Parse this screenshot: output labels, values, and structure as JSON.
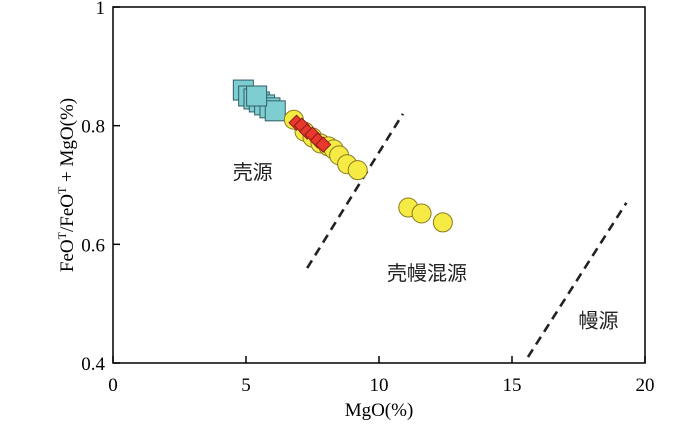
{
  "chart_data": {
    "type": "scatter",
    "xlabel": "MgO(%)",
    "ylabel_parts": [
      "FeO",
      "T",
      "/FeO",
      "T",
      " + MgO(%)"
    ],
    "xlim": [
      0,
      20
    ],
    "ylim": [
      0.4,
      1.0
    ],
    "x_ticks": [
      0,
      5,
      10,
      15,
      20
    ],
    "x_tick_labels": [
      "0",
      "5",
      "10",
      "15",
      "20"
    ],
    "y_ticks": [
      0.4,
      0.6,
      0.8,
      1.0
    ],
    "y_tick_labels": [
      "0.4",
      "0.6",
      "0.8",
      "1"
    ],
    "grid": false,
    "series": [
      {
        "marker": "square",
        "color": "#7ecdd0",
        "stroke": "#2f5f66",
        "points": [
          {
            "x": 4.9,
            "y": 0.86
          },
          {
            "x": 5.1,
            "y": 0.85
          },
          {
            "x": 5.3,
            "y": 0.845
          },
          {
            "x": 5.5,
            "y": 0.84
          },
          {
            "x": 5.7,
            "y": 0.835
          },
          {
            "x": 5.9,
            "y": 0.83
          },
          {
            "x": 6.1,
            "y": 0.825
          },
          {
            "x": 5.4,
            "y": 0.85
          }
        ]
      },
      {
        "marker": "circle",
        "color": "#f6ea45",
        "stroke": "#8a7b1d",
        "points": [
          {
            "x": 6.8,
            "y": 0.81
          },
          {
            "x": 7.2,
            "y": 0.79
          },
          {
            "x": 7.5,
            "y": 0.78
          },
          {
            "x": 7.8,
            "y": 0.77
          },
          {
            "x": 8.1,
            "y": 0.765
          },
          {
            "x": 8.3,
            "y": 0.76
          },
          {
            "x": 8.5,
            "y": 0.75
          },
          {
            "x": 8.8,
            "y": 0.735
          },
          {
            "x": 9.2,
            "y": 0.725
          },
          {
            "x": 11.1,
            "y": 0.662
          },
          {
            "x": 11.6,
            "y": 0.652
          },
          {
            "x": 12.4,
            "y": 0.637
          }
        ]
      },
      {
        "marker": "diamond",
        "color": "#e8372c",
        "stroke": "#8b1b14",
        "points": [
          {
            "x": 6.9,
            "y": 0.805
          },
          {
            "x": 7.1,
            "y": 0.8
          },
          {
            "x": 7.3,
            "y": 0.79
          },
          {
            "x": 7.5,
            "y": 0.785
          },
          {
            "x": 7.7,
            "y": 0.775
          },
          {
            "x": 7.9,
            "y": 0.768
          }
        ]
      }
    ],
    "boundary_lines": [
      {
        "from": {
          "x": 7.3,
          "y": 0.56
        },
        "to": {
          "x": 10.9,
          "y": 0.82
        }
      },
      {
        "from": {
          "x": 15.6,
          "y": 0.41
        },
        "to": {
          "x": 19.3,
          "y": 0.67
        }
      }
    ],
    "annotations": [
      {
        "text": "壳源",
        "x": 4.5,
        "y": 0.71
      },
      {
        "text": "壳幔混源",
        "x": 10.3,
        "y": 0.54
      },
      {
        "text": "幔源",
        "x": 17.5,
        "y": 0.46
      }
    ]
  }
}
